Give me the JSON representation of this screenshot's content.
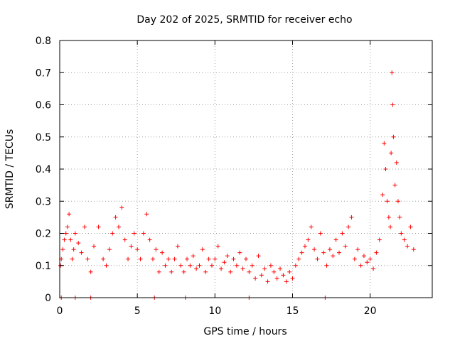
{
  "chart_data": {
    "type": "scatter",
    "title": "Day 202 of 2025, SRMTID for receiver echo",
    "xlabel": "GPS time / hours",
    "ylabel": "SRMTID / TECUs",
    "xlim": [
      0,
      24
    ],
    "ylim": [
      0,
      0.8
    ],
    "x_ticks": [
      0,
      5,
      10,
      15,
      20
    ],
    "x_tick_labels": [
      "0",
      "5",
      "10",
      "15",
      "20"
    ],
    "y_ticks": [
      0,
      0.1,
      0.2,
      0.3,
      0.4,
      0.5,
      0.6,
      0.7,
      0.8
    ],
    "y_tick_labels": [
      "0",
      "0.1",
      "0.2",
      "0.3",
      "0.4",
      "0.5",
      "0.6",
      "0.7",
      "0.8"
    ],
    "grid": true,
    "marker": "+",
    "color": "#ff0000",
    "series": [
      {
        "name": "SRMTID",
        "x": [
          0.05,
          0.1,
          0.2,
          0.3,
          0.4,
          0.5,
          0.6,
          0.7,
          0.8,
          0.9,
          1.0,
          1.2,
          1.4,
          1.6,
          1.8,
          2.0,
          2.2,
          2.5,
          2.8,
          3.0,
          3.2,
          3.4,
          3.6,
          3.8,
          4.0,
          4.2,
          4.4,
          4.6,
          4.8,
          5.0,
          5.2,
          5.4,
          5.6,
          5.8,
          6.0,
          6.2,
          6.4,
          6.6,
          6.8,
          7.0,
          7.2,
          7.4,
          7.6,
          7.8,
          8.0,
          8.2,
          8.4,
          8.6,
          8.8,
          9.0,
          9.2,
          9.4,
          9.6,
          9.8,
          10.0,
          10.2,
          10.4,
          10.6,
          10.8,
          11.0,
          11.2,
          11.4,
          11.6,
          11.8,
          12.0,
          12.2,
          12.4,
          12.6,
          12.8,
          13.0,
          13.2,
          13.4,
          13.6,
          13.8,
          14.0,
          14.2,
          14.4,
          14.6,
          14.8,
          15.0,
          15.2,
          15.4,
          15.6,
          15.8,
          16.0,
          16.2,
          16.4,
          16.6,
          16.8,
          17.0,
          17.2,
          17.4,
          17.6,
          17.8,
          18.0,
          18.2,
          18.4,
          18.6,
          18.8,
          19.0,
          19.2,
          19.4,
          19.6,
          19.8,
          20.0,
          20.2,
          20.4,
          20.6,
          20.8,
          20.9,
          21.0,
          21.1,
          21.2,
          21.3,
          21.35,
          21.4,
          21.45,
          21.5,
          21.6,
          21.7,
          21.8,
          21.9,
          22.0,
          22.2,
          22.4,
          22.6,
          22.8
        ],
        "y": [
          0.1,
          0.12,
          0.15,
          0.18,
          0.2,
          0.22,
          0.26,
          0.18,
          0.12,
          0.15,
          0.2,
          0.17,
          0.14,
          0.22,
          0.12,
          0.08,
          0.16,
          0.22,
          0.12,
          0.1,
          0.15,
          0.2,
          0.25,
          0.22,
          0.28,
          0.18,
          0.12,
          0.16,
          0.2,
          0.15,
          0.12,
          0.2,
          0.26,
          0.18,
          0.12,
          0.15,
          0.08,
          0.14,
          0.1,
          0.12,
          0.08,
          0.12,
          0.16,
          0.1,
          0.08,
          0.12,
          0.1,
          0.13,
          0.09,
          0.1,
          0.15,
          0.08,
          0.12,
          0.1,
          0.12,
          0.16,
          0.09,
          0.11,
          0.13,
          0.08,
          0.12,
          0.1,
          0.14,
          0.09,
          0.12,
          0.08,
          0.1,
          0.06,
          0.13,
          0.07,
          0.09,
          0.05,
          0.1,
          0.08,
          0.06,
          0.09,
          0.07,
          0.05,
          0.08,
          0.06,
          0.1,
          0.12,
          0.14,
          0.16,
          0.18,
          0.22,
          0.15,
          0.12,
          0.2,
          0.14,
          0.1,
          0.15,
          0.13,
          0.18,
          0.14,
          0.2,
          0.16,
          0.22,
          0.25,
          0.12,
          0.15,
          0.1,
          0.13,
          0.11,
          0.12,
          0.09,
          0.14,
          0.18,
          0.32,
          0.48,
          0.4,
          0.3,
          0.25,
          0.22,
          0.45,
          0.7,
          0.6,
          0.5,
          0.35,
          0.42,
          0.3,
          0.25,
          0.2,
          0.18,
          0.16,
          0.22,
          0.15
        ]
      }
    ],
    "markers_at_zero": [
      0.1,
      1.0,
      2.0,
      6.1,
      8.1,
      12.2,
      17.1
    ]
  }
}
